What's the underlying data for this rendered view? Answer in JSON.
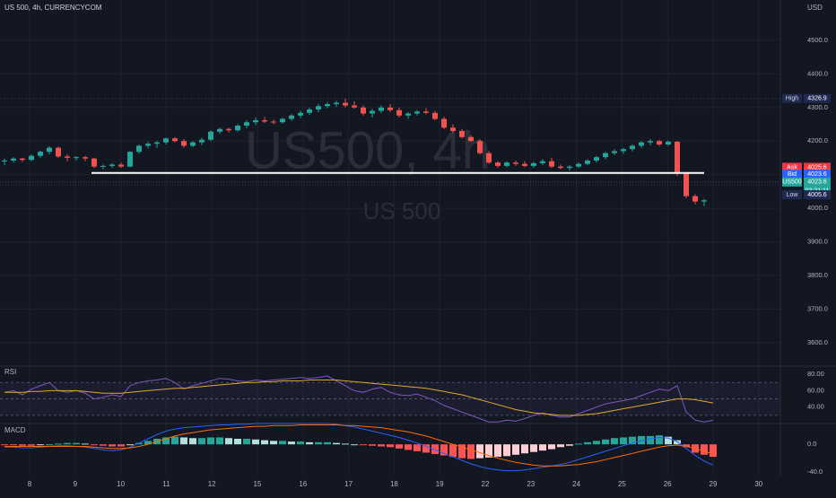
{
  "header": {
    "symbol_text": "US 500, 4h, CURRENCYCOM",
    "currency": "USD",
    "watermark_main": "US500, 4h",
    "watermark_sub": "US 500"
  },
  "price_tags": [
    {
      "label": "High",
      "value": "4326.9",
      "price": 4326.9,
      "color": "#1e2a52"
    },
    {
      "label": "Ask",
      "value": "4025.6",
      "price": 4122.0,
      "color": "#f23645"
    },
    {
      "label": "Bid",
      "value": "4023.6",
      "price": 4101.0,
      "color": "#2962ff"
    },
    {
      "label": "US500",
      "value": "4023.6",
      "extra": "03:21:11",
      "price": 4078.0,
      "color": "#26a69a"
    },
    {
      "label": "Low",
      "value": "4005.6",
      "price": 4040.0,
      "color": "#1e2a52"
    }
  ],
  "panes": {
    "rsi_label": "RSI",
    "macd_label": "MACD"
  },
  "colors": {
    "up": "#26a69a",
    "down": "#ef5350",
    "rsi": "#7e57c2",
    "rsi_ma": "#e0a82e",
    "macd": "#2962ff",
    "signal": "#ff6d00",
    "support_line": "#ffffff"
  },
  "chart_data": [
    {
      "type": "candlestick",
      "title": "US 500, 4h, CURRENCYCOM",
      "ylabel": "USD",
      "ylim": [
        3530,
        4620
      ],
      "y_ticks": [
        4500,
        4400,
        4300,
        4200,
        4100,
        4000,
        3900,
        3800,
        3700,
        3600
      ],
      "y_tick_labels": [
        "4500.0",
        "4400.0",
        "4300.0",
        "4200.0",
        "4100.0",
        "4000.0",
        "3900.0",
        "3800.0",
        "3700.0",
        "3600.0"
      ],
      "x_tick_labels": [
        "8",
        "9",
        "10",
        "11",
        "12",
        "15",
        "16",
        "17",
        "18",
        "19",
        "22",
        "23",
        "24",
        "25",
        "26",
        "29",
        "30"
      ],
      "grid": true,
      "support_level": 4105,
      "ohlc": [
        [
          4140,
          4148,
          4128,
          4142
        ],
        [
          4142,
          4152,
          4136,
          4148
        ],
        [
          4148,
          4150,
          4138,
          4144
        ],
        [
          4144,
          4160,
          4140,
          4156
        ],
        [
          4156,
          4172,
          4150,
          4168
        ],
        [
          4168,
          4185,
          4160,
          4180
        ],
        [
          4180,
          4184,
          4150,
          4154
        ],
        [
          4154,
          4160,
          4140,
          4150
        ],
        [
          4150,
          4155,
          4142,
          4152
        ],
        [
          4152,
          4156,
          4140,
          4148
        ],
        [
          4148,
          4150,
          4120,
          4124
        ],
        [
          4124,
          4130,
          4116,
          4126
        ],
        [
          4126,
          4134,
          4120,
          4130
        ],
        [
          4130,
          4136,
          4120,
          4124
        ],
        [
          4124,
          4170,
          4122,
          4168
        ],
        [
          4168,
          4190,
          4162,
          4186
        ],
        [
          4186,
          4198,
          4178,
          4192
        ],
        [
          4192,
          4200,
          4180,
          4196
        ],
        [
          4196,
          4210,
          4190,
          4208
        ],
        [
          4208,
          4212,
          4196,
          4200
        ],
        [
          4200,
          4206,
          4180,
          4186
        ],
        [
          4186,
          4200,
          4182,
          4196
        ],
        [
          4196,
          4210,
          4188,
          4204
        ],
        [
          4204,
          4232,
          4200,
          4228
        ],
        [
          4228,
          4240,
          4222,
          4236
        ],
        [
          4236,
          4240,
          4226,
          4232
        ],
        [
          4232,
          4250,
          4228,
          4246
        ],
        [
          4246,
          4262,
          4238,
          4256
        ],
        [
          4256,
          4270,
          4248,
          4262
        ],
        [
          4262,
          4272,
          4254,
          4258
        ],
        [
          4258,
          4264,
          4250,
          4256
        ],
        [
          4256,
          4270,
          4252,
          4266
        ],
        [
          4266,
          4280,
          4260,
          4276
        ],
        [
          4276,
          4290,
          4268,
          4284
        ],
        [
          4284,
          4300,
          4278,
          4294
        ],
        [
          4294,
          4310,
          4286,
          4304
        ],
        [
          4304,
          4316,
          4298,
          4310
        ],
        [
          4310,
          4320,
          4302,
          4314
        ],
        [
          4314,
          4326,
          4300,
          4306
        ],
        [
          4306,
          4318,
          4296,
          4300
        ],
        [
          4300,
          4306,
          4276,
          4282
        ],
        [
          4282,
          4296,
          4270,
          4290
        ],
        [
          4290,
          4306,
          4284,
          4300
        ],
        [
          4300,
          4310,
          4286,
          4292
        ],
        [
          4292,
          4300,
          4270,
          4276
        ],
        [
          4276,
          4286,
          4266,
          4282
        ],
        [
          4282,
          4292,
          4276,
          4288
        ],
        [
          4288,
          4298,
          4280,
          4284
        ],
        [
          4284,
          4290,
          4262,
          4266
        ],
        [
          4266,
          4272,
          4236,
          4240
        ],
        [
          4240,
          4250,
          4224,
          4230
        ],
        [
          4230,
          4236,
          4208,
          4212
        ],
        [
          4212,
          4218,
          4196,
          4200
        ],
        [
          4200,
          4206,
          4160,
          4164
        ],
        [
          4164,
          4170,
          4132,
          4136
        ],
        [
          4136,
          4140,
          4120,
          4126
        ],
        [
          4126,
          4140,
          4122,
          4136
        ],
        [
          4136,
          4142,
          4126,
          4132
        ],
        [
          4132,
          4140,
          4122,
          4126
        ],
        [
          4126,
          4138,
          4120,
          4134
        ],
        [
          4134,
          4146,
          4128,
          4140
        ],
        [
          4140,
          4150,
          4120,
          4124
        ],
        [
          4124,
          4130,
          4116,
          4120
        ],
        [
          4120,
          4128,
          4112,
          4124
        ],
        [
          4124,
          4136,
          4120,
          4132
        ],
        [
          4132,
          4146,
          4128,
          4142
        ],
        [
          4142,
          4156,
          4136,
          4152
        ],
        [
          4152,
          4168,
          4146,
          4164
        ],
        [
          4164,
          4176,
          4158,
          4170
        ],
        [
          4170,
          4180,
          4162,
          4176
        ],
        [
          4176,
          4190,
          4170,
          4186
        ],
        [
          4186,
          4200,
          4180,
          4196
        ],
        [
          4196,
          4206,
          4188,
          4200
        ],
        [
          4200,
          4204,
          4186,
          4190
        ],
        [
          4190,
          4202,
          4186,
          4198
        ],
        [
          4198,
          4200,
          4096,
          4104
        ],
        [
          4104,
          4108,
          4030,
          4036
        ],
        [
          4036,
          4042,
          4012,
          4020
        ],
        [
          4020,
          4028,
          4006,
          4023.6
        ]
      ]
    },
    {
      "type": "line",
      "title": "RSI",
      "ylim": [
        20,
        90
      ],
      "y_ticks": [
        80,
        60,
        40
      ],
      "y_tick_labels": [
        "80.00",
        "60.00",
        "40.00"
      ],
      "bands": [
        70,
        50,
        30
      ],
      "series": [
        {
          "values": [
            58,
            60,
            55,
            62,
            66,
            70,
            60,
            58,
            60,
            57,
            50,
            52,
            55,
            53,
            66,
            70,
            72,
            73,
            75,
            70,
            62,
            66,
            69,
            72,
            75,
            74,
            72,
            71,
            73,
            72,
            73,
            74,
            75,
            76,
            75,
            76,
            78,
            72,
            66,
            60,
            58,
            62,
            64,
            58,
            55,
            54,
            56,
            52,
            48,
            42,
            38,
            34,
            30,
            26,
            22,
            22,
            24,
            23,
            26,
            30,
            33,
            30,
            28,
            28,
            32,
            36,
            40,
            44,
            46,
            48,
            50,
            54,
            58,
            62,
            60,
            66,
            34,
            24,
            22,
            24
          ]
        },
        {
          "values": [
            58,
            58,
            58,
            59,
            59,
            60,
            60,
            60,
            60,
            59,
            58,
            57,
            57,
            57,
            58,
            59,
            60,
            61,
            62,
            63,
            63,
            64,
            65,
            66,
            67,
            68,
            69,
            70,
            70,
            71,
            71,
            72,
            72,
            72,
            73,
            73,
            73,
            73,
            72,
            71,
            70,
            69,
            68,
            67,
            66,
            65,
            64,
            63,
            61,
            59,
            57,
            55,
            52,
            49,
            46,
            43,
            40,
            37,
            35,
            33,
            32,
            31,
            30,
            30,
            30,
            31,
            32,
            34,
            36,
            38,
            40,
            42,
            44,
            46,
            48,
            50,
            50,
            49,
            47,
            45
          ]
        }
      ]
    },
    {
      "type": "bar",
      "title": "MACD",
      "ylim": [
        -45,
        30
      ],
      "y_ticks": [
        0.0,
        -40.0
      ],
      "y_tick_labels": [
        "0.0",
        "-40.0"
      ],
      "histogram": [
        -1,
        -1,
        -2,
        -2,
        -1,
        0,
        1,
        2,
        2,
        1,
        -1,
        -2,
        -3,
        -3,
        -1,
        2,
        5,
        8,
        10,
        11,
        10,
        9,
        9,
        10,
        10,
        9,
        8,
        8,
        7,
        6,
        5,
        5,
        4,
        4,
        3,
        3,
        3,
        2,
        1,
        0,
        -1,
        -2,
        -3,
        -4,
        -6,
        -8,
        -10,
        -12,
        -14,
        -16,
        -18,
        -20,
        -21,
        -20,
        -19,
        -18,
        -17,
        -15,
        -13,
        -11,
        -9,
        -7,
        -4,
        -2,
        1,
        3,
        5,
        7,
        9,
        10,
        11,
        12,
        12,
        13,
        11,
        6,
        -4,
        -12,
        -15,
        -18
      ],
      "series": [
        {
          "values": [
            -4,
            -4,
            -5,
            -5,
            -4,
            -3,
            -2,
            -2,
            -3,
            -4,
            -6,
            -8,
            -9,
            -8,
            -4,
            2,
            8,
            14,
            19,
            22,
            24,
            25,
            26,
            27,
            28,
            28,
            29,
            29,
            30,
            30,
            30,
            30,
            30,
            30,
            30,
            30,
            30,
            29,
            27,
            25,
            22,
            19,
            16,
            13,
            10,
            6,
            2,
            -3,
            -8,
            -13,
            -18,
            -23,
            -28,
            -32,
            -35,
            -37,
            -38,
            -38,
            -37,
            -35,
            -33,
            -31,
            -29,
            -26,
            -22,
            -18,
            -14,
            -10,
            -6,
            -2,
            2,
            5,
            8,
            10,
            9,
            4,
            -6,
            -16,
            -24,
            -30
          ]
        },
        {
          "values": [
            -3,
            -3,
            -3,
            -3,
            -3,
            -3,
            -3,
            -3,
            -3,
            -3,
            -4,
            -5,
            -6,
            -6,
            -5,
            -3,
            0,
            4,
            8,
            12,
            15,
            17,
            19,
            21,
            22,
            23,
            24,
            25,
            26,
            26,
            27,
            27,
            27,
            28,
            28,
            28,
            28,
            28,
            27,
            27,
            26,
            25,
            24,
            22,
            20,
            18,
            15,
            12,
            8,
            4,
            0,
            -4,
            -8,
            -12,
            -16,
            -20,
            -23,
            -26,
            -28,
            -30,
            -31,
            -31,
            -31,
            -30,
            -29,
            -27,
            -25,
            -22,
            -19,
            -16,
            -13,
            -10,
            -7,
            -4,
            -2,
            -1,
            -3,
            -6,
            -10,
            -14
          ]
        }
      ]
    }
  ]
}
